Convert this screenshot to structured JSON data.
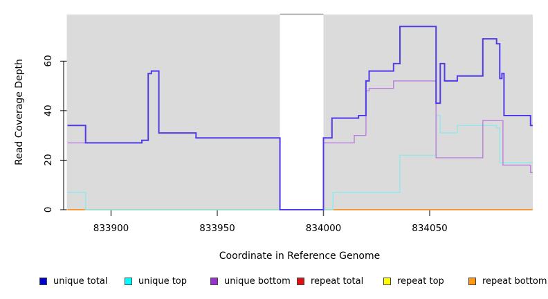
{
  "figure": {
    "xlabel": "Coordinate in Reference Genome",
    "ylabel": "Read Coverage Depth"
  },
  "chart_data": {
    "type": "line",
    "title": "",
    "xlabel": "Coordinate in Reference Genome",
    "ylabel": "Read Coverage Depth",
    "xlim": [
      833879.5,
      834098.5
    ],
    "ylim": [
      0,
      79
    ],
    "x_ticks": [
      833900,
      833950,
      834000,
      834050
    ],
    "y_ticks": [
      0,
      20,
      40,
      60
    ],
    "grid": false,
    "plot_background": "#DBDBDB",
    "no_data_region": {
      "from": 833979.5,
      "to": 834000
    },
    "legend_position": "bottom",
    "series": [
      {
        "name": "unique total",
        "legend_color": "#0000CC",
        "line_color": "#4F3BE8",
        "line_width": 2,
        "steps": [
          [
            833879.5,
            34
          ],
          [
            833888,
            27
          ],
          [
            833914.5,
            28
          ],
          [
            833917.5,
            55
          ],
          [
            833919,
            56
          ],
          [
            833922.5,
            31
          ],
          [
            833940,
            29
          ],
          [
            833979.5,
            0
          ],
          [
            834000,
            29
          ],
          [
            834004,
            37
          ],
          [
            834016.5,
            38
          ],
          [
            834020,
            52
          ],
          [
            834021.5,
            56
          ],
          [
            834033,
            59
          ],
          [
            834036,
            74
          ],
          [
            834053,
            43
          ],
          [
            834055,
            59
          ],
          [
            834057,
            52
          ],
          [
            834063,
            54
          ],
          [
            834075,
            69
          ],
          [
            834081.5,
            67
          ],
          [
            834083,
            53
          ],
          [
            834084,
            55
          ],
          [
            834085,
            38
          ],
          [
            834097.5,
            34
          ],
          [
            834098.5,
            34
          ]
        ]
      },
      {
        "name": "unique top",
        "legend_color": "#00FFFF",
        "line_color": "#8FE9EC",
        "line_width": 1.4,
        "steps": [
          [
            833879.5,
            7
          ],
          [
            833888,
            0
          ],
          [
            834004.5,
            7
          ],
          [
            834036,
            22
          ],
          [
            834053,
            38
          ],
          [
            834055,
            31
          ],
          [
            834063,
            34
          ],
          [
            834081.5,
            33
          ],
          [
            834083,
            19
          ],
          [
            834098.5,
            19
          ]
        ]
      },
      {
        "name": "unique bottom",
        "legend_color": "#9933CC",
        "line_color": "#B87FDF",
        "line_width": 1.4,
        "steps": [
          [
            833879.5,
            27
          ],
          [
            833888,
            27
          ],
          [
            833914.5,
            28
          ],
          [
            833917.5,
            55
          ],
          [
            833919,
            56
          ],
          [
            833922.5,
            31
          ],
          [
            833940,
            29
          ],
          [
            833979.5,
            0
          ],
          [
            834000,
            27
          ],
          [
            834014.5,
            30
          ],
          [
            834020,
            48
          ],
          [
            834021.5,
            49
          ],
          [
            834033,
            52
          ],
          [
            834053,
            21
          ],
          [
            834075,
            36
          ],
          [
            834084.5,
            18
          ],
          [
            834097.5,
            15
          ],
          [
            834098.5,
            15
          ]
        ]
      },
      {
        "name": "repeat total",
        "legend_color": "#DD1111",
        "line_color": "#DD1111",
        "line_width": 1.2,
        "steps": [
          [
            833879.5,
            0
          ],
          [
            834098.5,
            0
          ]
        ]
      },
      {
        "name": "repeat top",
        "legend_color": "#FFFF00",
        "line_color": "#FFFF00",
        "line_width": 1.2,
        "steps": [
          [
            833879.5,
            0
          ],
          [
            834098.5,
            0
          ]
        ]
      },
      {
        "name": "repeat bottom",
        "legend_color": "#FF9912",
        "line_color": "#FF8C1A",
        "line_width": 1.6,
        "steps": [
          [
            833879.5,
            0
          ],
          [
            834098.5,
            0
          ]
        ]
      }
    ],
    "zero_overlap_segment": {
      "from": 833888,
      "to": 834004.5,
      "value": 0,
      "color": "#8FCE8F"
    }
  }
}
